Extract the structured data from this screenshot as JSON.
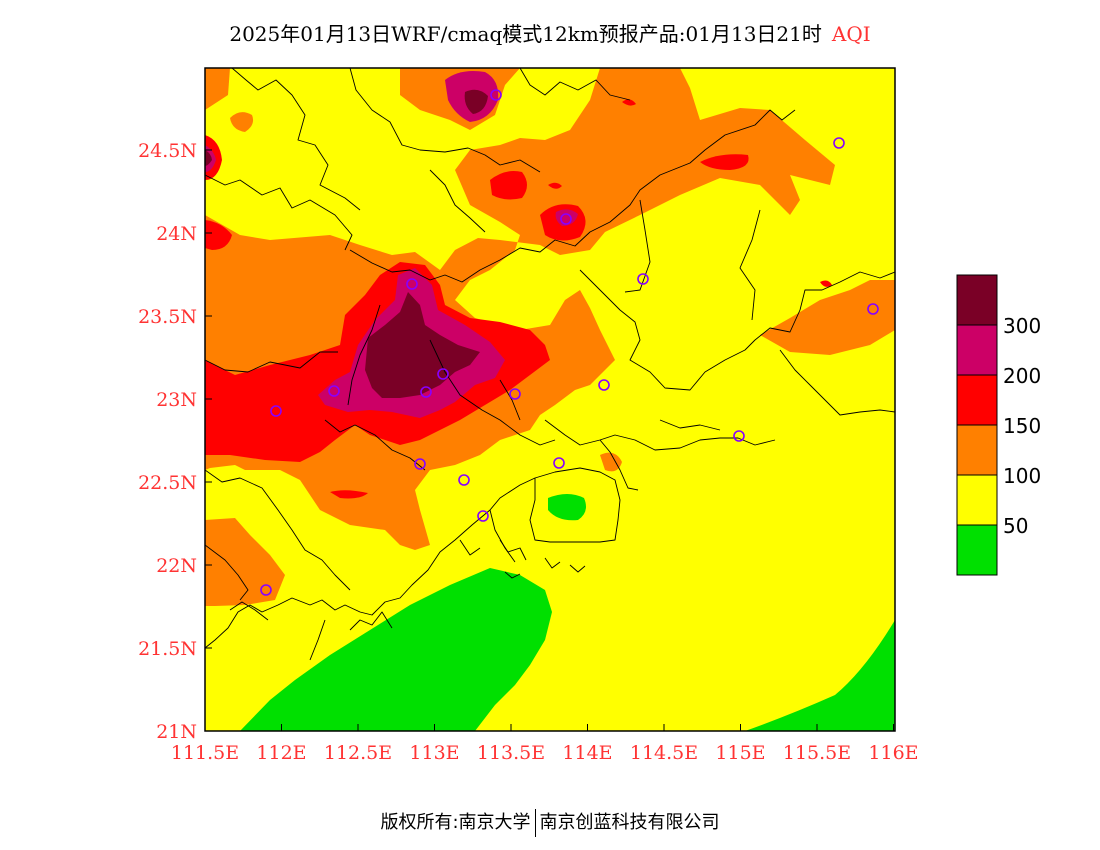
{
  "title": {
    "main": "2025年01月13日WRF/cmaq模式12km预报产品:01月13日21时",
    "variable": "AQI"
  },
  "axes": {
    "lon_ticks": [
      "111.5E",
      "112E",
      "112.5E",
      "113E",
      "113.5E",
      "114E",
      "114.5E",
      "115E",
      "115.5E",
      "116E"
    ],
    "lat_ticks": [
      "21N",
      "21.5N",
      "22N",
      "22.5N",
      "23N",
      "23.5N",
      "24N",
      "24.5N"
    ],
    "tick_color": "#ff3333"
  },
  "legend": {
    "levels": [
      {
        "label": "",
        "color": "#00e000"
      },
      {
        "label": "50",
        "color": "#ffff00"
      },
      {
        "label": "100",
        "color": "#ff8000"
      },
      {
        "label": "150",
        "color": "#ff0000"
      },
      {
        "label": "200",
        "color": "#cc0066"
      },
      {
        "label": "300",
        "color": "#7a0026"
      }
    ]
  },
  "footer": {
    "left": "版权所有:南京大学",
    "right": "南京创蓝科技有限公司"
  }
}
